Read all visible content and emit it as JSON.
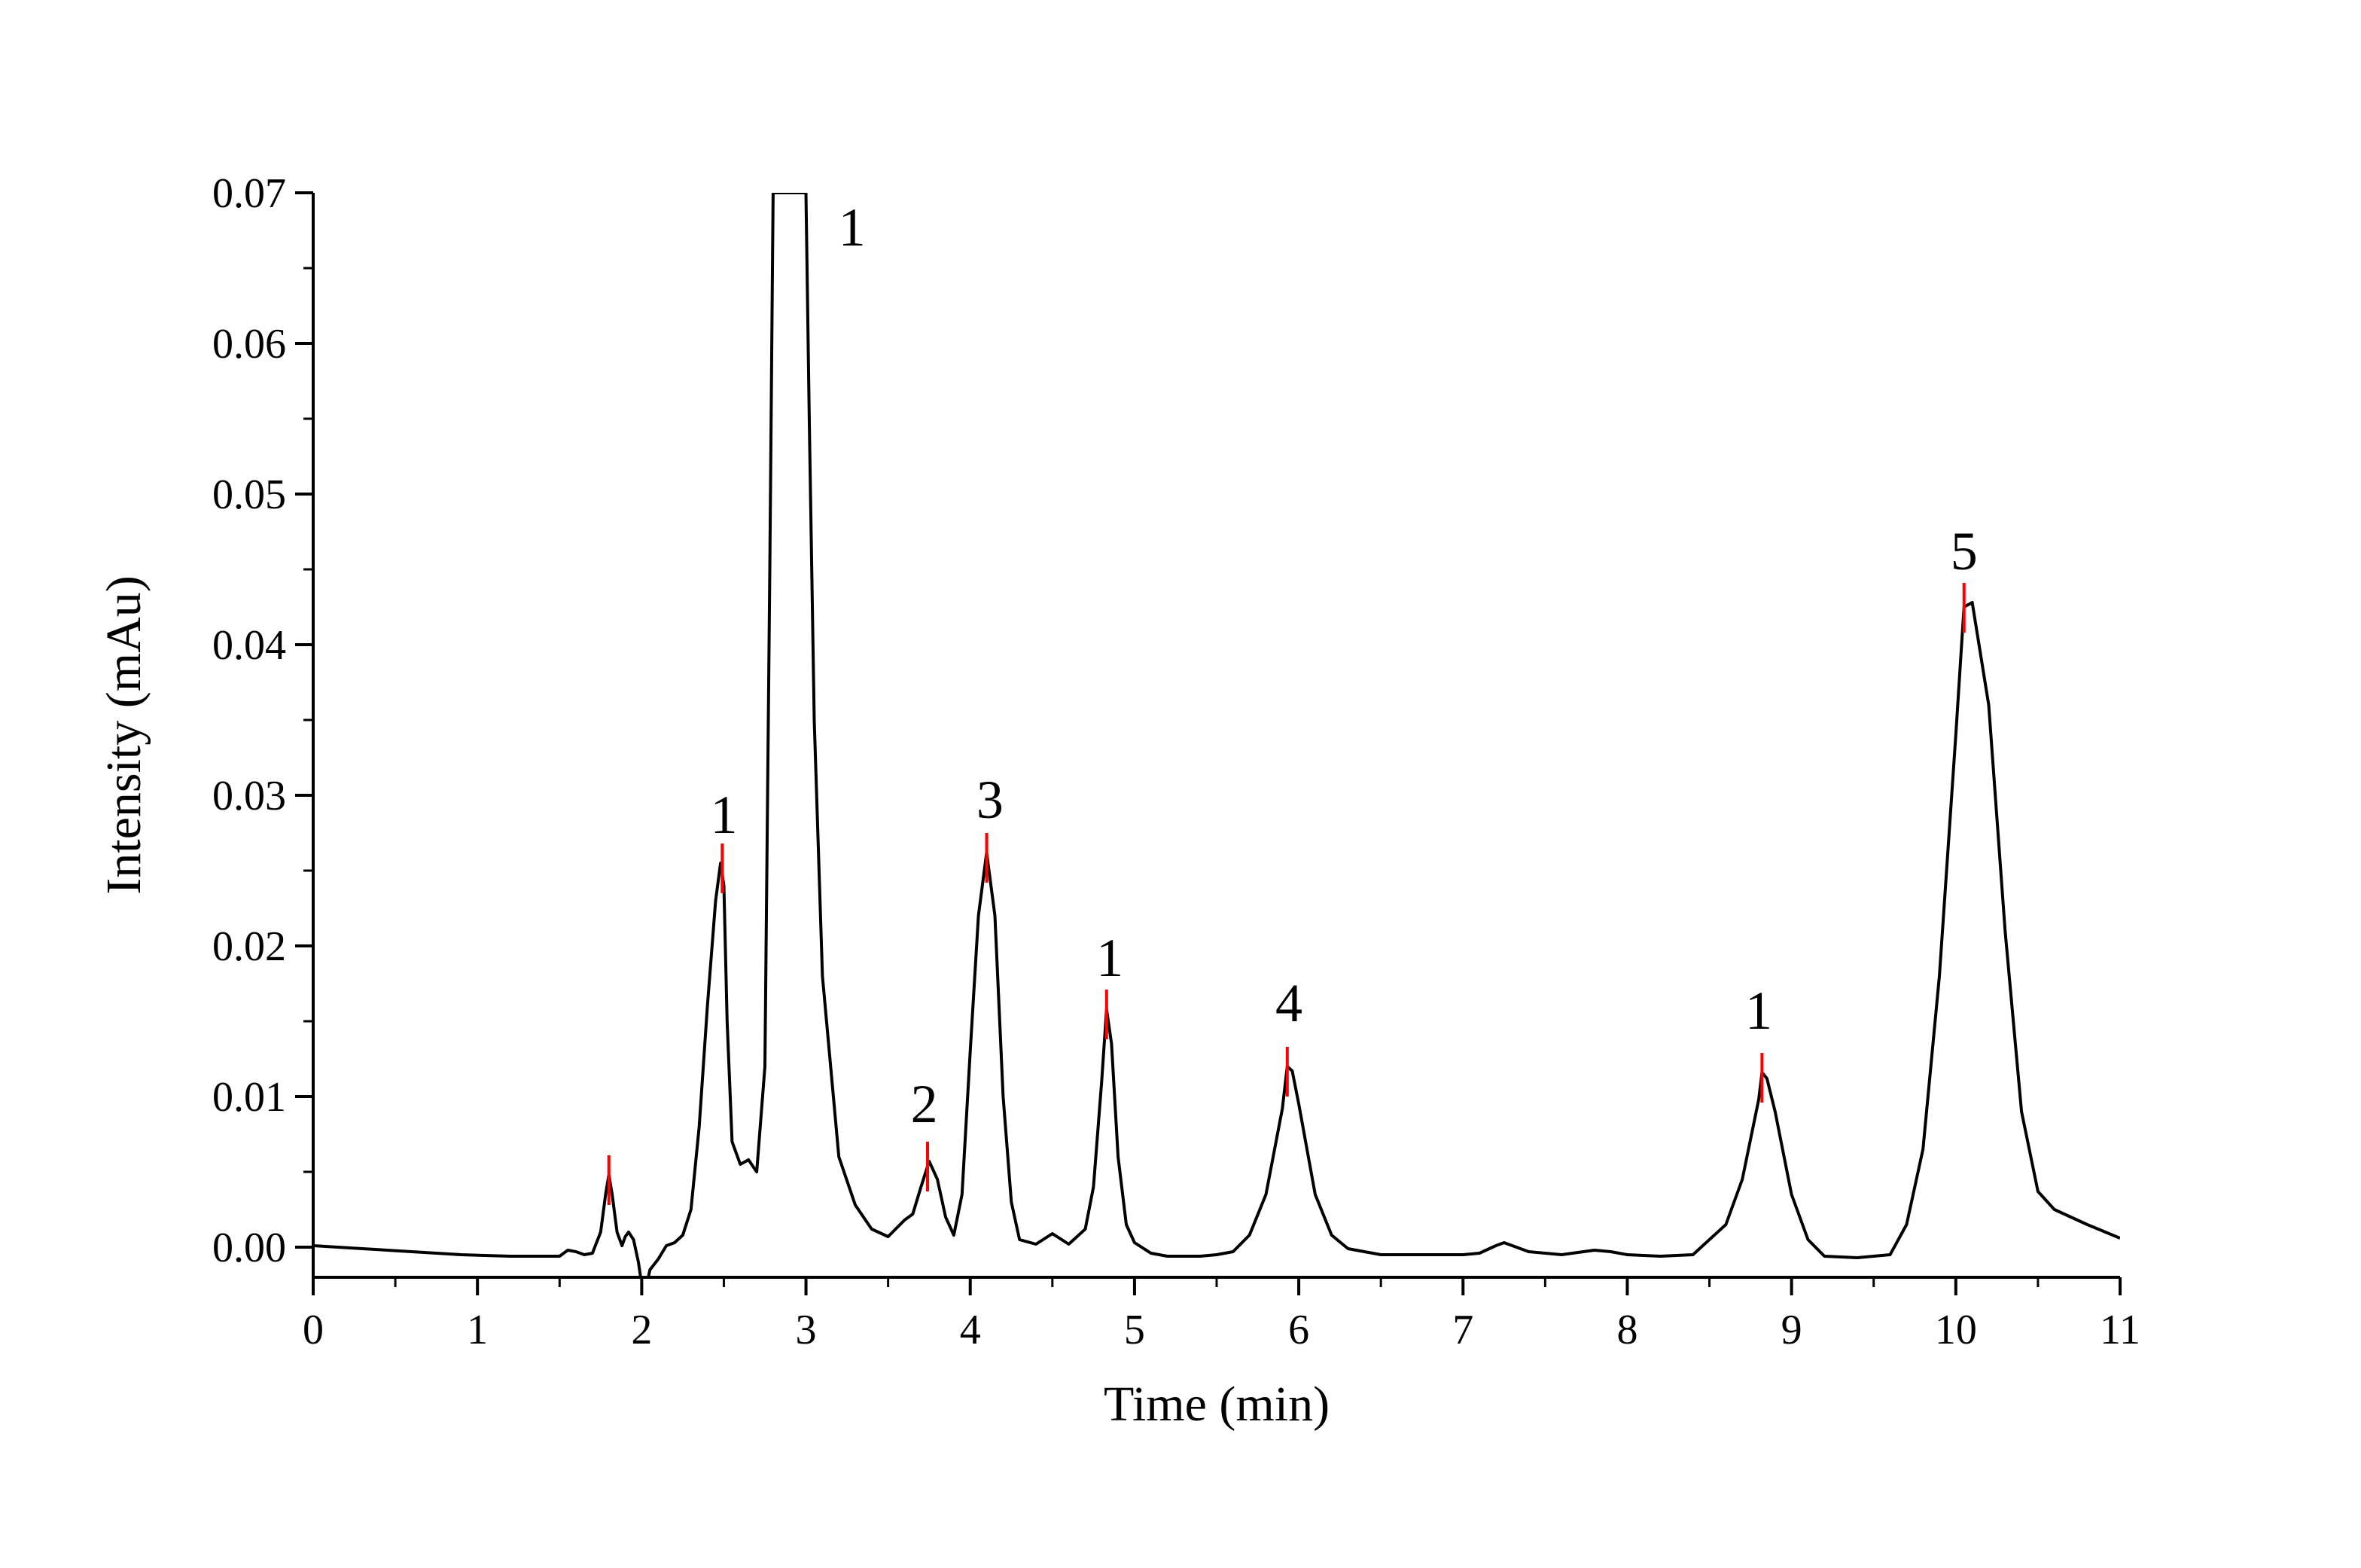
{
  "chart_data": {
    "type": "line",
    "title": "",
    "xlabel": "Time (min)",
    "ylabel": "Intensity (mAu)",
    "xlim": [
      0,
      11
    ],
    "ylim": [
      -0.002,
      0.07
    ],
    "x_ticks": [
      0,
      1,
      2,
      3,
      4,
      5,
      6,
      7,
      8,
      9,
      10,
      11
    ],
    "x_tick_labels": [
      "0",
      "1",
      "2",
      "3",
      "4",
      "5",
      "6",
      "7",
      "8",
      "9",
      "10",
      "11"
    ],
    "y_ticks": [
      0.0,
      0.01,
      0.02,
      0.03,
      0.04,
      0.05,
      0.06,
      0.07
    ],
    "y_tick_labels": [
      "0.00",
      "0.01",
      "0.02",
      "0.03",
      "0.04",
      "0.05",
      "0.06",
      "0.07"
    ],
    "grid": false,
    "legend": "none",
    "line_color": "#000000",
    "marker_color": "#ff0000",
    "series": [
      {
        "x": [
          0.0,
          0.3,
          0.6,
          0.9,
          1.2,
          1.5,
          1.55,
          1.6,
          1.65,
          1.7,
          1.75,
          1.78,
          1.8,
          1.82,
          1.85,
          1.88,
          1.9,
          1.92,
          1.95,
          1.98,
          2.0,
          2.03,
          2.05,
          2.1,
          2.15,
          2.2,
          2.25,
          2.3,
          2.35,
          2.4,
          2.45,
          2.48,
          2.5,
          2.52,
          2.55,
          2.6,
          2.65,
          2.7,
          2.75,
          2.78,
          2.8,
          2.85,
          2.9,
          2.95,
          3.0,
          3.02,
          3.05,
          3.1,
          3.2,
          3.3,
          3.4,
          3.5,
          3.6,
          3.65,
          3.7,
          3.75,
          3.8,
          3.85,
          3.9,
          3.95,
          4.0,
          4.05,
          4.1,
          4.15,
          4.2,
          4.25,
          4.3,
          4.4,
          4.5,
          4.6,
          4.7,
          4.75,
          4.8,
          4.83,
          4.86,
          4.9,
          4.95,
          5.0,
          5.1,
          5.2,
          5.3,
          5.4,
          5.5,
          5.6,
          5.7,
          5.8,
          5.9,
          5.93,
          5.96,
          6.0,
          6.1,
          6.2,
          6.3,
          6.5,
          7.0,
          7.1,
          7.2,
          7.25,
          7.3,
          7.4,
          7.6,
          7.8,
          7.9,
          8.0,
          8.2,
          8.4,
          8.5,
          8.6,
          8.7,
          8.8,
          8.82,
          8.85,
          8.9,
          9.0,
          9.1,
          9.2,
          9.4,
          9.6,
          9.7,
          9.8,
          9.9,
          10.0,
          10.05,
          10.1,
          10.2,
          10.3,
          10.4,
          10.5,
          10.6,
          10.8,
          11.0
        ],
        "y": [
          0.0001,
          -0.0001,
          -0.0003,
          -0.0005,
          -0.0006,
          -0.0006,
          -0.0002,
          -0.0003,
          -0.0005,
          -0.0004,
          0.001,
          0.0035,
          0.0048,
          0.0035,
          0.001,
          0.0001,
          0.0007,
          0.001,
          0.0005,
          -0.001,
          -0.0025,
          -0.0025,
          -0.0015,
          -0.0008,
          0.0001,
          0.0003,
          0.0008,
          0.0025,
          0.008,
          0.016,
          0.023,
          0.0255,
          0.024,
          0.015,
          0.007,
          0.0055,
          0.0058,
          0.005,
          0.012,
          0.045,
          0.07,
          0.07,
          0.07,
          0.07,
          0.07,
          0.055,
          0.035,
          0.018,
          0.006,
          0.0028,
          0.0012,
          0.0007,
          0.0018,
          0.0022,
          0.004,
          0.0057,
          0.0045,
          0.002,
          0.0008,
          0.0035,
          0.013,
          0.022,
          0.0262,
          0.022,
          0.01,
          0.003,
          0.0005,
          0.0002,
          0.0009,
          0.0002,
          0.0012,
          0.004,
          0.011,
          0.0158,
          0.0135,
          0.006,
          0.0015,
          0.0003,
          -0.0004,
          -0.0006,
          -0.0006,
          -0.0006,
          -0.0005,
          -0.0003,
          0.0008,
          0.0035,
          0.0092,
          0.012,
          0.0117,
          0.0095,
          0.0035,
          0.0008,
          -0.0001,
          -0.0005,
          -0.0005,
          -0.0004,
          0.0001,
          0.0003,
          0.0001,
          -0.0003,
          -0.0005,
          -0.0002,
          -0.0003,
          -0.0005,
          -0.0006,
          -0.0005,
          0.0005,
          0.0015,
          0.0045,
          0.0098,
          0.0116,
          0.0112,
          0.009,
          0.0035,
          0.0005,
          -0.0006,
          -0.0007,
          -0.0005,
          0.0015,
          0.0065,
          0.018,
          0.034,
          0.0425,
          0.0428,
          0.036,
          0.021,
          0.009,
          0.0037,
          0.0025,
          0.0015,
          0.0006
        ]
      }
    ],
    "peak_markers": [
      {
        "x": 1.8,
        "y": 0.0048
      },
      {
        "x": 2.49,
        "y": 0.0255
      },
      {
        "x": 3.74,
        "y": 0.0057
      },
      {
        "x": 4.1,
        "y": 0.0262
      },
      {
        "x": 4.83,
        "y": 0.0158
      },
      {
        "x": 5.93,
        "y": 0.012
      },
      {
        "x": 8.82,
        "y": 0.0116
      },
      {
        "x": 10.05,
        "y": 0.0428
      }
    ],
    "annotations": [
      {
        "text": "1",
        "x": 2.5,
        "y": 0.0275
      },
      {
        "text": "1",
        "x": 3.28,
        "y": 0.0665
      },
      {
        "text": "2",
        "x": 3.72,
        "y": 0.0083
      },
      {
        "text": "3",
        "x": 4.12,
        "y": 0.0285
      },
      {
        "text": "1",
        "x": 4.85,
        "y": 0.018
      },
      {
        "text": "4",
        "x": 5.94,
        "y": 0.015
      },
      {
        "text": "1",
        "x": 8.8,
        "y": 0.0145
      },
      {
        "text": "5",
        "x": 10.05,
        "y": 0.045
      }
    ]
  }
}
